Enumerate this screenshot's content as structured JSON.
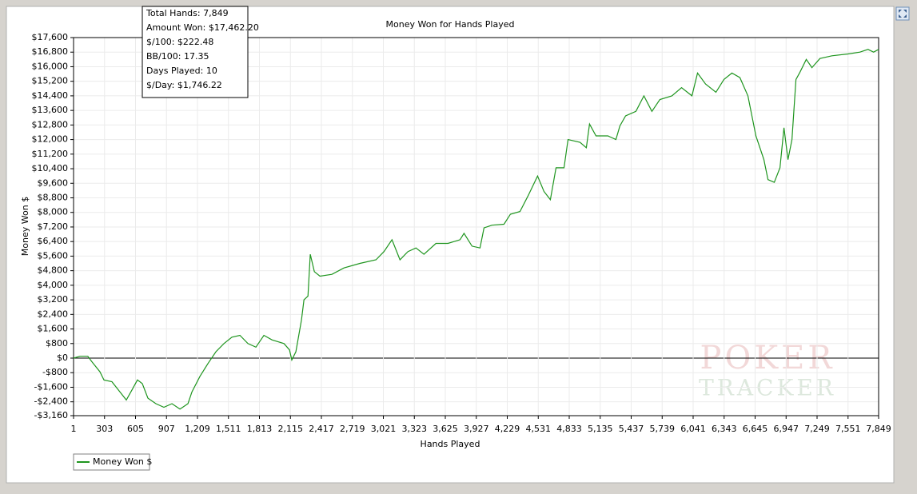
{
  "chart_data": {
    "type": "line",
    "title": "Money Won for Hands Played",
    "xlabel": "Hands Played",
    "ylabel": "Money Won $",
    "xlim": [
      1,
      7849
    ],
    "ylim": [
      -3160,
      17600
    ],
    "grid": true,
    "legend": "bottom-left",
    "xticks": [
      1,
      303,
      605,
      907,
      {
        "value": 1209,
        "label": "1,209"
      },
      {
        "value": 1511,
        "label": "1,511"
      },
      {
        "value": 1813,
        "label": "1,813"
      },
      {
        "value": 2115,
        "label": "2,115"
      },
      {
        "value": 2417,
        "label": "2,417"
      },
      {
        "value": 2719,
        "label": "2,719"
      },
      {
        "value": 3021,
        "label": "3,021"
      },
      {
        "value": 3323,
        "label": "3,323"
      },
      {
        "value": 3625,
        "label": "3,625"
      },
      {
        "value": 3927,
        "label": "3,927"
      },
      {
        "value": 4229,
        "label": "4,229"
      },
      {
        "value": 4531,
        "label": "4,531"
      },
      {
        "value": 4833,
        "label": "4,833"
      },
      {
        "value": 5135,
        "label": "5,135"
      },
      {
        "value": 5437,
        "label": "5,437"
      },
      {
        "value": 5739,
        "label": "5,739"
      },
      {
        "value": 6041,
        "label": "6,041"
      },
      {
        "value": 6343,
        "label": "6,343"
      },
      {
        "value": 6645,
        "label": "6,645"
      },
      {
        "value": 6947,
        "label": "6,947"
      },
      {
        "value": 7249,
        "label": "7,249"
      },
      {
        "value": 7551,
        "label": "7,551"
      },
      {
        "value": 7849,
        "label": "7,849"
      }
    ],
    "yticks": [
      {
        "value": -3160,
        "label": "-$3,160"
      },
      {
        "value": -2400,
        "label": "-$2,400"
      },
      {
        "value": -1600,
        "label": "-$1,600"
      },
      {
        "value": -800,
        "label": "-$800"
      },
      {
        "value": 0,
        "label": "$0"
      },
      {
        "value": 800,
        "label": "$800"
      },
      {
        "value": 1600,
        "label": "$1,600"
      },
      {
        "value": 2400,
        "label": "$2,400"
      },
      {
        "value": 3200,
        "label": "$3,200"
      },
      {
        "value": 4000,
        "label": "$4,000"
      },
      {
        "value": 4800,
        "label": "$4,800"
      },
      {
        "value": 5600,
        "label": "$5,600"
      },
      {
        "value": 6400,
        "label": "$6,400"
      },
      {
        "value": 7200,
        "label": "$7,200"
      },
      {
        "value": 8000,
        "label": "$8,000"
      },
      {
        "value": 8800,
        "label": "$8,800"
      },
      {
        "value": 9600,
        "label": "$9,600"
      },
      {
        "value": 10400,
        "label": "$10,400"
      },
      {
        "value": 11200,
        "label": "$11,200"
      },
      {
        "value": 12000,
        "label": "$12,000"
      },
      {
        "value": 12800,
        "label": "$12,800"
      },
      {
        "value": 13600,
        "label": "$13,600"
      },
      {
        "value": 14400,
        "label": "$14,400"
      },
      {
        "value": 15200,
        "label": "$15,200"
      },
      {
        "value": 16000,
        "label": "$16,000"
      },
      {
        "value": 16800,
        "label": "$16,800"
      },
      {
        "value": 17600,
        "label": "$17,600"
      }
    ],
    "series": [
      {
        "name": "Money Won $",
        "color": "#1f951f",
        "x": [
          1,
          63,
          140,
          180,
          258,
          297,
          375,
          453,
          515,
          570,
          624,
          671,
          726,
          804,
          882,
          960,
          1038,
          1116,
          1155,
          1233,
          1311,
          1389,
          1467,
          1545,
          1623,
          1701,
          1779,
          1857,
          1935,
          2052,
          2106,
          2129,
          2168,
          2223,
          2247,
          2286,
          2309,
          2348,
          2403,
          2520,
          2637,
          2793,
          2949,
          3027,
          3105,
          3183,
          3261,
          3339,
          3417,
          3534,
          3651,
          3768,
          3807,
          3885,
          3963,
          4002,
          4080,
          4197,
          4259,
          4353,
          4431,
          4524,
          4587,
          4649,
          4704,
          4782,
          4821,
          4938,
          5000,
          5031,
          5094,
          5210,
          5288,
          5327,
          5382,
          5483,
          5561,
          5639,
          5717,
          5834,
          5928,
          6029,
          6084,
          6162,
          6263,
          6341,
          6419,
          6497,
          6575,
          6653,
          6731,
          6770,
          6832,
          6887,
          6926,
          6965,
          7004,
          7043,
          7082,
          7144,
          7199,
          7277,
          7394,
          7550,
          7667,
          7745,
          7800,
          7849
        ],
        "values": [
          0,
          100,
          100,
          -200,
          -750,
          -1200,
          -1300,
          -1850,
          -2300,
          -1750,
          -1200,
          -1400,
          -2200,
          -2500,
          -2700,
          -2500,
          -2800,
          -2500,
          -1850,
          -1000,
          -300,
          350,
          800,
          1150,
          1250,
          800,
          600,
          1250,
          1000,
          800,
          450,
          -100,
          350,
          2100,
          3200,
          3400,
          5700,
          4750,
          4500,
          4600,
          4950,
          5200,
          5400,
          5850,
          6500,
          5400,
          5850,
          6050,
          5700,
          6300,
          6300,
          6500,
          6850,
          6150,
          6050,
          7150,
          7300,
          7350,
          7900,
          8050,
          8900,
          10000,
          9150,
          8700,
          10450,
          10450,
          12000,
          11850,
          11550,
          12850,
          12200,
          12200,
          12000,
          12750,
          13300,
          13550,
          14400,
          13550,
          14200,
          14400,
          14850,
          14400,
          15650,
          15050,
          14600,
          15300,
          15650,
          15400,
          14400,
          12200,
          10900,
          9800,
          9650,
          10450,
          12650,
          10900,
          12000,
          15300,
          15700,
          16400,
          15950,
          16450,
          16600,
          16700,
          16800,
          16950,
          16800,
          16950
        ]
      }
    ]
  },
  "tooltip": [
    "Total Hands: 7,849",
    "Amount Won: $17,462.20",
    "$/100: $222.48",
    "BB/100: 17.35",
    "Days Played: 10",
    "$/Day: $1,746.22"
  ],
  "watermark": [
    "POKER",
    "TRACKER"
  ]
}
